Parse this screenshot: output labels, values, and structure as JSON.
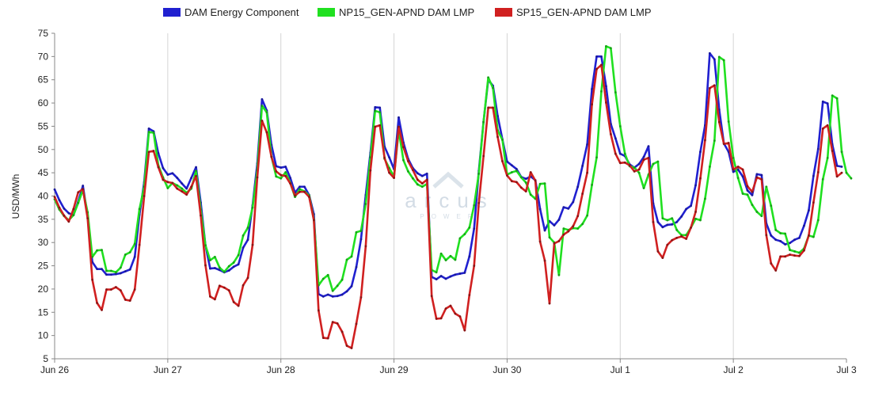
{
  "chart_data": {
    "type": "line",
    "title": "",
    "xlabel": "",
    "ylabel": "USD/MWh",
    "ylim": [
      5,
      75
    ],
    "yticks": [
      5,
      10,
      15,
      20,
      25,
      30,
      35,
      40,
      45,
      50,
      55,
      60,
      65,
      70,
      75
    ],
    "xticks": [
      "Jun 26",
      "Jun 27",
      "Jun 28",
      "Jun 29",
      "Jun 30",
      "Jul 1",
      "Jul 2",
      "Jul 3"
    ],
    "x_unit": "hour",
    "grid": {
      "vertical": true,
      "horizontal": false
    },
    "legend": "top-center",
    "watermark": "arcus",
    "watermark_sub": "POWER",
    "series": [
      {
        "name": "DAM Energy Component",
        "color": "#2020d0",
        "values": [
          41.4,
          39.1,
          37.3,
          36.3,
          35.9,
          38.8,
          42.2,
          35.6,
          25.8,
          24.3,
          24.3,
          23.1,
          23.1,
          23.2,
          23.4,
          23.8,
          24.2,
          26.9,
          36.0,
          43.0,
          54.5,
          53.9,
          49.2,
          46.0,
          44.6,
          44.9,
          43.9,
          42.7,
          41.6,
          43.9,
          46.2,
          38.6,
          29.4,
          24.4,
          24.5,
          24.1,
          23.6,
          24.0,
          24.8,
          25.3,
          28.9,
          30.6,
          38.0,
          47.0,
          60.8,
          58.4,
          51.0,
          46.4,
          46.1,
          46.3,
          43.9,
          40.7,
          42.0,
          42.0,
          40.2,
          36.1,
          18.9,
          18.4,
          18.8,
          18.4,
          18.5,
          18.8,
          19.5,
          20.6,
          24.7,
          30.7,
          40.2,
          49.3,
          59.1,
          59.0,
          50.6,
          48.3,
          45.8,
          56.9,
          51.5,
          48.0,
          46.0,
          44.9,
          44.3,
          44.8,
          22.6,
          22.1,
          22.8,
          22.2,
          22.7,
          23.1,
          23.3,
          23.5,
          27.0,
          33.0,
          45.4,
          56.0,
          65.0,
          63.7,
          57.2,
          52.2,
          47.4,
          46.6,
          45.8,
          44.1,
          43.7,
          44.2,
          43.4,
          37.2,
          32.6,
          34.6,
          33.7,
          34.9,
          37.6,
          37.3,
          38.7,
          42.0,
          46.5,
          51.1,
          63.0,
          70.0,
          70.0,
          63.6,
          55.5,
          52.4,
          49.1,
          48.6,
          46.8,
          46.1,
          46.9,
          48.4,
          50.7,
          38.4,
          34.4,
          33.3,
          33.8,
          33.9,
          34.4,
          35.6,
          37.2,
          37.9,
          42.3,
          49.5,
          55.2,
          70.7,
          69.4,
          58.6,
          51.3,
          49.5,
          45.2,
          45.7,
          44.2,
          41.2,
          40.2,
          44.7,
          44.5,
          34.1,
          31.5,
          30.6,
          30.3,
          29.6,
          29.9,
          30.6,
          31.0,
          33.6,
          36.9,
          44.3,
          50.1,
          60.3,
          59.9,
          51.1,
          46.5,
          46.3
        ]
      },
      {
        "name": "NP15_GEN-APND DAM LMP",
        "color": "#20e020",
        "values": [
          39.3,
          37.1,
          35.7,
          34.8,
          35.9,
          38.5,
          41.3,
          36.5,
          26.9,
          28.3,
          28.4,
          23.9,
          23.9,
          23.6,
          24.6,
          27.4,
          27.9,
          29.7,
          37.2,
          42.0,
          53.8,
          53.6,
          46.6,
          44.0,
          41.7,
          42.8,
          42.3,
          41.6,
          40.7,
          41.6,
          45.4,
          37.1,
          29.4,
          26.2,
          26.9,
          24.6,
          23.7,
          24.9,
          25.7,
          27.3,
          31.5,
          33.2,
          37.5,
          45.5,
          59.4,
          58.0,
          48.5,
          44.2,
          43.8,
          45.1,
          42.8,
          39.8,
          41.5,
          41.0,
          40.1,
          35.0,
          20.8,
          22.2,
          23.0,
          19.6,
          20.7,
          22.0,
          26.3,
          27.0,
          32.2,
          32.5,
          38.3,
          48.3,
          58.3,
          58.0,
          48.0,
          46.0,
          44.2,
          54.1,
          47.7,
          45.3,
          43.8,
          42.5,
          42.0,
          42.6,
          24.1,
          23.6,
          27.6,
          26.2,
          27.1,
          26.3,
          30.9,
          31.8,
          33.2,
          38.0,
          44.8,
          55.9,
          65.5,
          63.2,
          54.1,
          52.1,
          44.6,
          45.1,
          45.4,
          44.0,
          42.9,
          40.3,
          39.4,
          42.6,
          42.7,
          31.1,
          30.0,
          23.0,
          33.0,
          32.7,
          33.1,
          33.0,
          34.0,
          35.8,
          42.4,
          48.3,
          62.5,
          72.2,
          71.8,
          62.3,
          55.0,
          49.1,
          46.4,
          46.1,
          45.0,
          41.7,
          44.6,
          46.9,
          47.4,
          35.2,
          34.8,
          35.2,
          32.7,
          31.6,
          31.6,
          33.2,
          35.1,
          34.8,
          39.4,
          46.3,
          51.9,
          69.9,
          69.2,
          56.0,
          48.2,
          43.9,
          40.5,
          40.3,
          38.1,
          36.6,
          35.7,
          42.0,
          37.9,
          32.7,
          32.0,
          31.9,
          28.4,
          28.1,
          27.8,
          28.7,
          31.5,
          31.2,
          34.8,
          43.6,
          48.2,
          61.6,
          61.0,
          49.5,
          45.0,
          43.8
        ]
      },
      {
        "name": "SP15_GEN-APND DAM LMP",
        "color": "#d02020",
        "values": [
          39.8,
          37.5,
          35.8,
          34.5,
          37.2,
          40.8,
          41.5,
          35.2,
          22.0,
          17.0,
          15.5,
          19.9,
          19.9,
          20.4,
          19.7,
          17.7,
          17.5,
          19.9,
          29.5,
          40.0,
          49.5,
          49.7,
          46.2,
          43.5,
          43.0,
          42.8,
          41.6,
          41.0,
          40.3,
          42.0,
          44.3,
          35.8,
          25.1,
          18.4,
          17.8,
          20.7,
          20.3,
          19.7,
          17.2,
          16.4,
          20.8,
          22.4,
          29.5,
          44.0,
          56.2,
          53.7,
          48.4,
          45.3,
          44.5,
          44.3,
          42.7,
          40.1,
          40.9,
          40.9,
          39.8,
          34.8,
          15.4,
          9.5,
          9.4,
          12.9,
          12.6,
          10.8,
          7.8,
          7.3,
          12.5,
          18.2,
          29.2,
          45.5,
          54.9,
          55.2,
          48.2,
          45.0,
          43.9,
          54.9,
          50.5,
          47.5,
          45.6,
          43.5,
          42.7,
          43.5,
          18.5,
          13.6,
          13.7,
          15.8,
          16.4,
          14.7,
          14.1,
          11.1,
          18.7,
          25.0,
          38.5,
          48.6,
          59.0,
          59.0,
          52.7,
          47.5,
          44.4,
          43.2,
          43.0,
          41.8,
          41.0,
          45.1,
          43.3,
          30.2,
          26.1,
          16.9,
          29.8,
          30.3,
          31.7,
          32.4,
          33.5,
          35.7,
          40.5,
          45.0,
          59.7,
          67.3,
          68.2,
          60.1,
          53.3,
          49.1,
          47.1,
          47.2,
          46.6,
          45.3,
          45.7,
          47.8,
          48.2,
          34.4,
          28.1,
          26.7,
          29.5,
          30.5,
          31.0,
          31.3,
          30.8,
          33.2,
          36.6,
          43.8,
          52.0,
          63.2,
          63.8,
          55.9,
          51.2,
          51.4,
          45.7,
          46.3,
          45.7,
          42.1,
          40.9,
          44.0,
          43.6,
          31.6,
          25.5,
          24.0,
          27.0,
          27.0,
          27.4,
          27.2,
          27.1,
          28.3,
          31.5,
          38.6,
          45.1,
          54.5,
          55.2,
          49.7,
          44.2,
          45.0
        ]
      }
    ]
  }
}
